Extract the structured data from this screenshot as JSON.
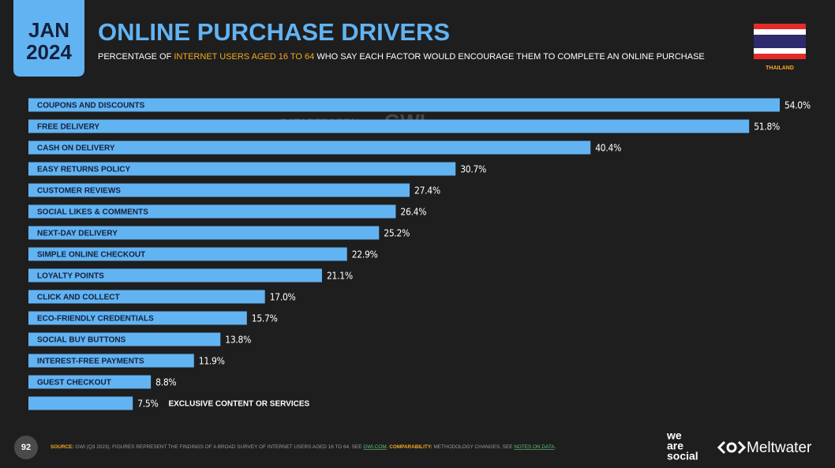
{
  "header": {
    "month": "JAN",
    "year": "2024",
    "title": "ONLINE PURCHASE DRIVERS",
    "subtitle": [
      "PERCENTAGE OF ",
      "INTERNET USERS AGED 16 TO 64",
      " WHO SAY EACH FACTOR WOULD ENCOURAGE THEM TO COMPLETE AN ONLINE PURCHASE"
    ],
    "country": "THAILAND"
  },
  "watermark": [
    "DATAREPORTAL",
    "GWI."
  ],
  "footer": {
    "page": "92",
    "source": [
      "SOURCE:",
      " GWI (Q3 2023). FIGURES REPRESENT THE FINDINGS OF A BROAD SURVEY OF INTERNET USERS AGED 16 TO 64. SEE ",
      "GWI.COM",
      ". ",
      "COMPARABILITY:",
      " METHODOLOGY CHANGES. SEE ",
      "NOTES ON DATA",
      "."
    ],
    "logos": [
      "we",
      "are",
      "social",
      "Meltwater"
    ]
  },
  "chart_data": {
    "type": "bar",
    "orientation": "horizontal",
    "color": "#62b3f2",
    "categories": [
      "COUPONS AND DISCOUNTS",
      "FREE DELIVERY",
      "CASH ON DELIVERY",
      "EASY RETURNS POLICY",
      "CUSTOMER REVIEWS",
      "SOCIAL LIKES & COMMENTS",
      "NEXT-DAY DELIVERY",
      "SIMPLE ONLINE CHECKOUT",
      "LOYALTY POINTS",
      "CLICK AND COLLECT",
      "ECO-FRIENDLY CREDENTIALS",
      "SOCIAL BUY BUTTONS",
      "INTEREST-FREE PAYMENTS",
      "GUEST CHECKOUT",
      "EXCLUSIVE CONTENT OR SERVICES"
    ],
    "values": [
      54.0,
      51.8,
      40.4,
      30.7,
      27.4,
      26.4,
      25.2,
      22.9,
      21.1,
      17.0,
      15.7,
      13.8,
      11.9,
      8.8,
      7.5
    ],
    "value_labels": [
      "54.0%",
      "51.8%",
      "40.4%",
      "30.7%",
      "27.4%",
      "26.4%",
      "25.2%",
      "22.9%",
      "21.1%",
      "17.0%",
      "15.7%",
      "13.8%",
      "11.9%",
      "8.8%",
      "7.5%"
    ]
  }
}
